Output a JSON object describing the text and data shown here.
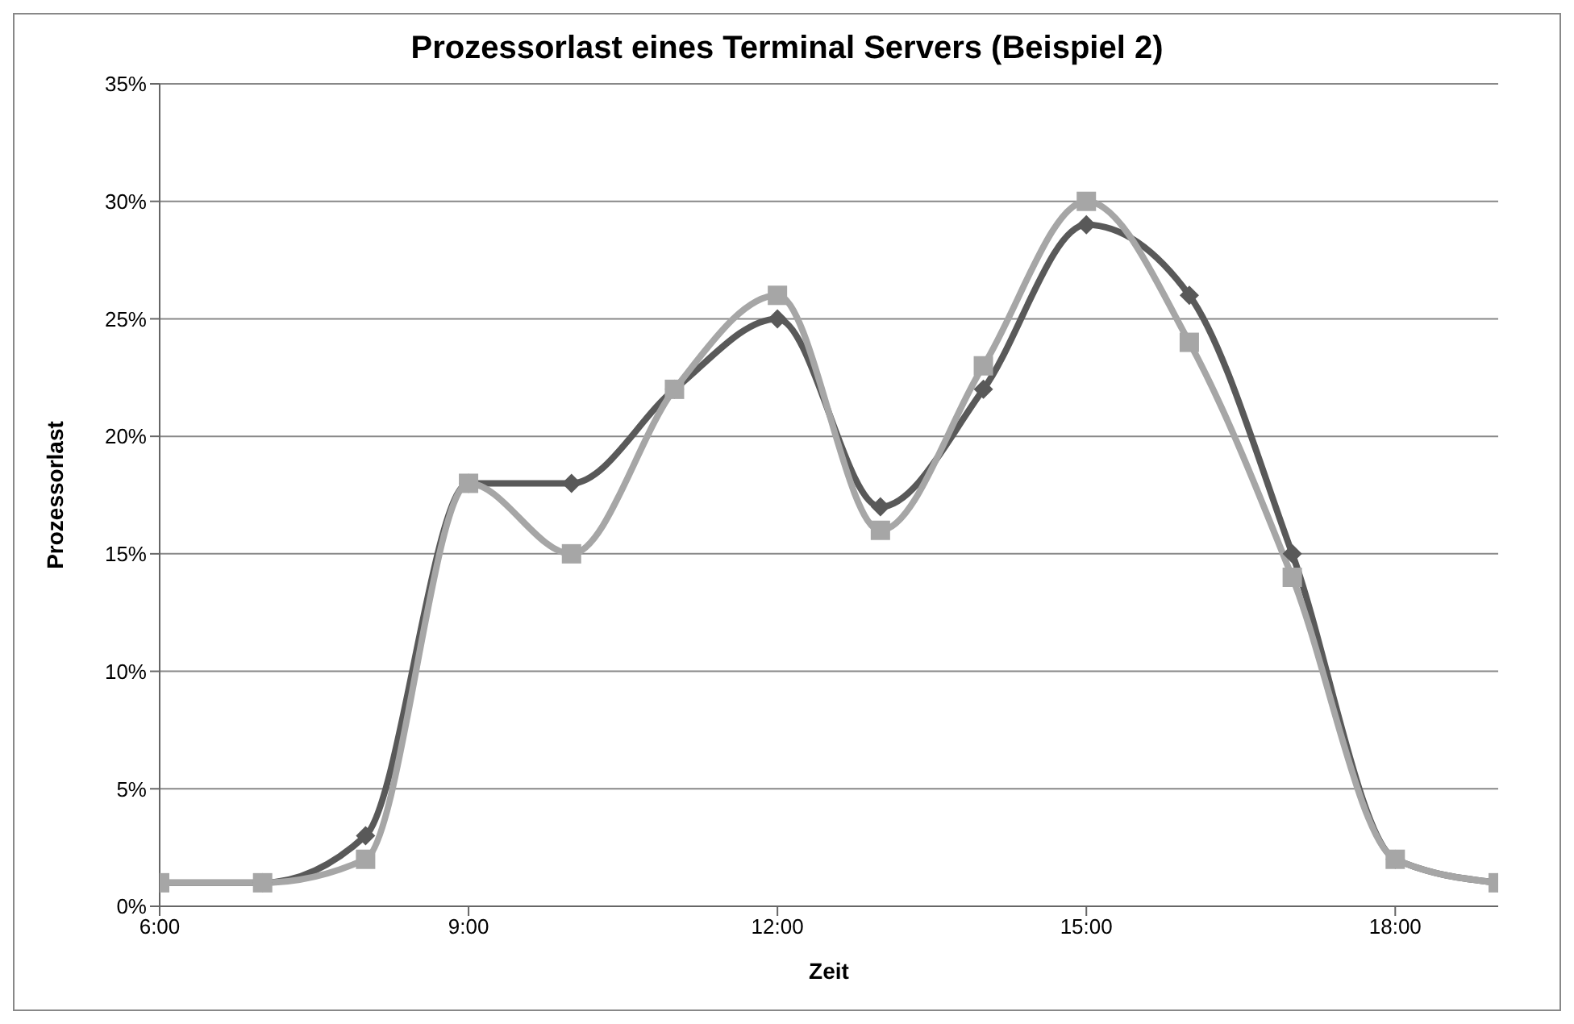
{
  "chart_data": {
    "type": "line",
    "title": "Prozessorlast eines Terminal Servers (Beispiel 2)",
    "xlabel": "Zeit",
    "ylabel": "Prozessorlast",
    "x": [
      6,
      7,
      8,
      9,
      10,
      11,
      12,
      13,
      14,
      15,
      16,
      17,
      18,
      19
    ],
    "series": [
      {
        "color": "#595959",
        "marker": "diamond",
        "values": [
          1,
          1,
          3,
          18,
          18,
          22,
          25,
          17,
          22,
          29,
          26,
          15,
          2,
          1
        ]
      },
      {
        "color": "#a6a6a6",
        "marker": "square",
        "values": [
          1,
          1,
          2,
          18,
          15,
          22,
          26,
          16,
          23,
          30,
          24,
          14,
          2,
          1
        ]
      }
    ],
    "xlim": [
      6,
      19
    ],
    "xticks": [
      {
        "value": 6,
        "label": "6:00"
      },
      {
        "value": 9,
        "label": "9:00"
      },
      {
        "value": 12,
        "label": "12:00"
      },
      {
        "value": 15,
        "label": "15:00"
      },
      {
        "value": 18,
        "label": "18:00"
      }
    ],
    "ylim": [
      0,
      35
    ],
    "yticks": [
      {
        "value": 0,
        "label": "0%"
      },
      {
        "value": 5,
        "label": "5%"
      },
      {
        "value": 10,
        "label": "10%"
      },
      {
        "value": 15,
        "label": "15%"
      },
      {
        "value": 20,
        "label": "20%"
      },
      {
        "value": 25,
        "label": "25%"
      },
      {
        "value": 30,
        "label": "30%"
      },
      {
        "value": 35,
        "label": "35%"
      }
    ],
    "grid": "y",
    "legend": false
  }
}
